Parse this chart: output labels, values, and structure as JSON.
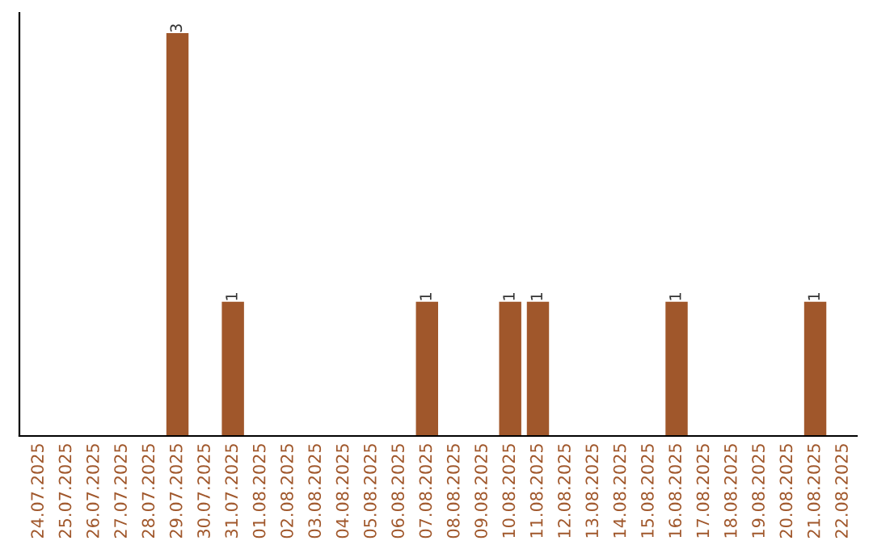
{
  "chart_data": {
    "type": "bar",
    "categories": [
      "24.07.2025",
      "25.07.2025",
      "26.07.2025",
      "27.07.2025",
      "28.07.2025",
      "29.07.2025",
      "30.07.2025",
      "31.07.2025",
      "01.08.2025",
      "02.08.2025",
      "03.08.2025",
      "04.08.2025",
      "05.08.2025",
      "06.08.2025",
      "07.08.2025",
      "08.08.2025",
      "09.08.2025",
      "10.08.2025",
      "11.08.2025",
      "12.08.2025",
      "13.08.2025",
      "14.08.2025",
      "15.08.2025",
      "16.08.2025",
      "17.08.2025",
      "18.08.2025",
      "19.08.2025",
      "20.08.2025",
      "21.08.2025",
      "22.08.2025"
    ],
    "values": [
      0,
      0,
      0,
      0,
      0,
      3,
      0,
      1,
      0,
      0,
      0,
      0,
      0,
      0,
      1,
      0,
      0,
      1,
      1,
      0,
      0,
      0,
      0,
      1,
      0,
      0,
      0,
      0,
      1,
      0
    ],
    "color": "#a0572b",
    "value_labels": [
      null,
      null,
      null,
      null,
      null,
      "3",
      null,
      "1",
      null,
      null,
      null,
      null,
      null,
      null,
      "1",
      null,
      null,
      "1",
      "1",
      null,
      null,
      null,
      null,
      "1",
      null,
      null,
      null,
      null,
      "1",
      null
    ],
    "tick_labels": "x",
    "grid": false,
    "legend": false
  }
}
